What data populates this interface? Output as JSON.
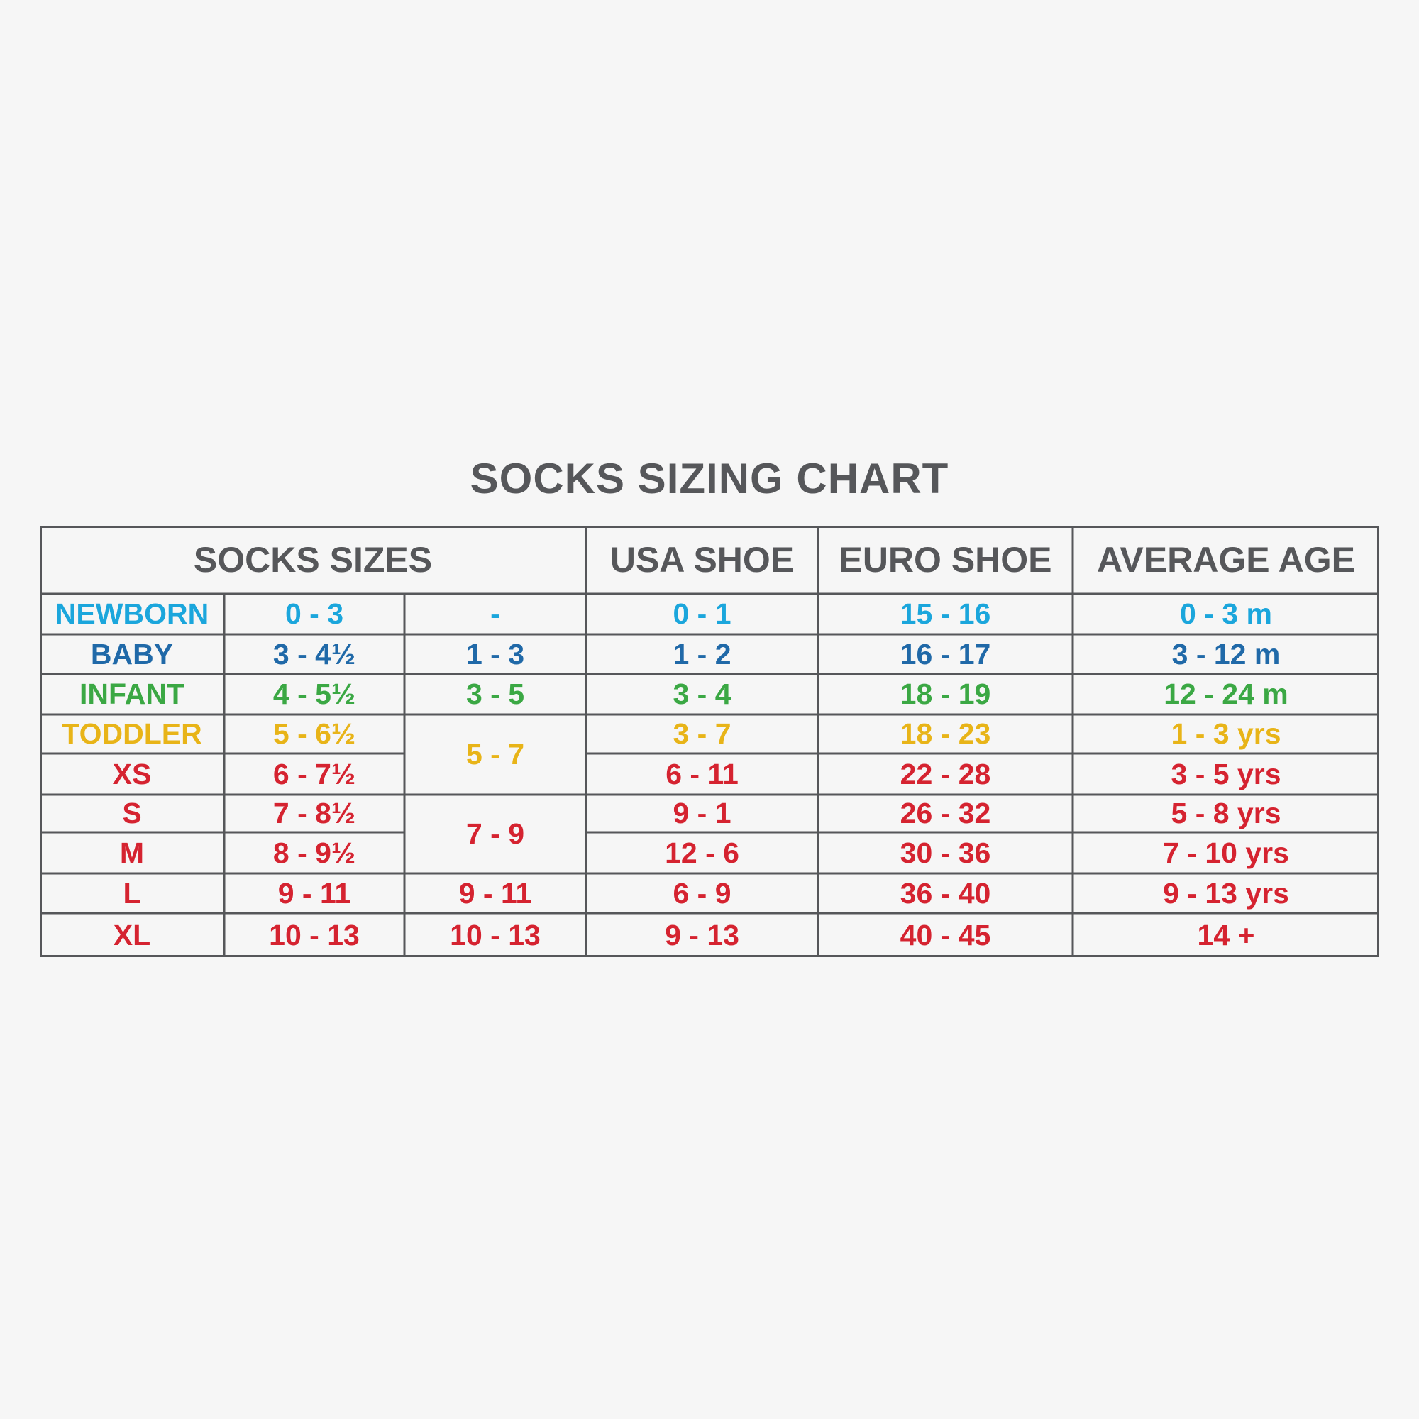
{
  "title": "SOCKS SIZING CHART",
  "colors": {
    "border": "#56575a",
    "header_text": "#56575a",
    "newborn": "#1ba6dc",
    "baby": "#2069a8",
    "infant": "#3ba844",
    "toddler": "#e8b418",
    "adult": "#d52330"
  },
  "headers": {
    "socks_sizes": "SOCKS SIZES",
    "usa_shoe": "USA SHOE",
    "euro_shoe": "EURO SHOE",
    "average_age": "AVERAGE AGE"
  },
  "rows": [
    {
      "size": "NEWBORN",
      "socks_range": "0 - 3",
      "usa": "0 - 1",
      "euro": "15 - 16",
      "age": "0 - 3 m",
      "color_key": "newborn"
    },
    {
      "size": "BABY",
      "socks_range": "3 - 4½",
      "usa": "1 - 2",
      "euro": "16 - 17",
      "age": "3 - 12 m",
      "color_key": "baby"
    },
    {
      "size": "INFANT",
      "socks_range": "4 - 5½",
      "usa": "3 - 4",
      "euro": "18 - 19",
      "age": "12 - 24 m",
      "color_key": "infant"
    },
    {
      "size": "TODDLER",
      "socks_range": "5 - 6½",
      "usa": "3 - 7",
      "euro": "18 - 23",
      "age": "1 - 3 yrs",
      "color_key": "toddler"
    },
    {
      "size": "XS",
      "socks_range": "6 - 7½",
      "usa": "6 - 11",
      "euro": "22 - 28",
      "age": "3 - 5 yrs",
      "color_key": "adult"
    },
    {
      "size": "S",
      "socks_range": "7 - 8½",
      "usa": "9 - 1",
      "euro": "26 - 32",
      "age": "5 - 8 yrs",
      "color_key": "adult"
    },
    {
      "size": "M",
      "socks_range": "8 - 9½",
      "usa": "12 - 6",
      "euro": "30 - 36",
      "age": "7 - 10 yrs",
      "color_key": "adult"
    },
    {
      "size": "L",
      "socks_range": "9 - 11",
      "usa": "6 - 9",
      "euro": "36 - 40",
      "age": "9 - 13 yrs",
      "color_key": "adult"
    },
    {
      "size": "XL",
      "socks_range": "10 - 13",
      "usa": "9 - 13",
      "euro": "40 - 45",
      "age": "14 +",
      "color_key": "adult"
    }
  ],
  "group_ranges": [
    {
      "text": "-",
      "row_start": 0,
      "row_end": 0,
      "color_key": "newborn"
    },
    {
      "text": "1 - 3",
      "row_start": 1,
      "row_end": 1,
      "color_key": "baby"
    },
    {
      "text": "3 - 5",
      "row_start": 2,
      "row_end": 2,
      "color_key": "infant"
    },
    {
      "text": "5 - 7",
      "row_start": 3,
      "row_end": 4,
      "color_key": "toddler"
    },
    {
      "text": "7 - 9",
      "row_start": 5,
      "row_end": 6,
      "color_key": "adult"
    },
    {
      "text": "9 - 11",
      "row_start": 7,
      "row_end": 7,
      "color_key": "adult"
    },
    {
      "text": "10 - 13",
      "row_start": 8,
      "row_end": 8,
      "color_key": "adult"
    }
  ]
}
